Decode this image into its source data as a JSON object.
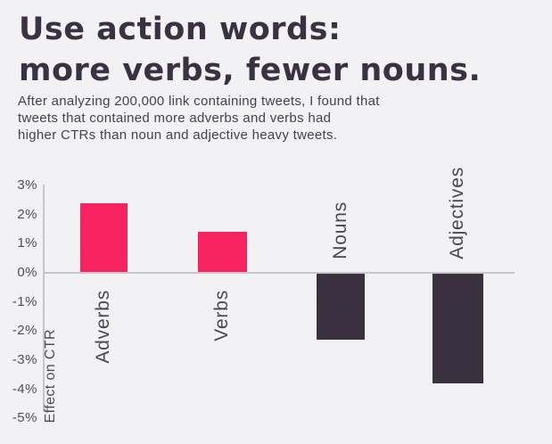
{
  "header": {
    "title_line1": "Use action words:",
    "title_line2": "more verbs, fewer nouns.",
    "subtitle_line1": "After analyzing 200,000 link containing tweets, I found that",
    "subtitle_line2": "tweets that contained more adverbs and verbs had",
    "subtitle_line3": "higher CTRs than noun and adjective heavy tweets."
  },
  "chart_data": {
    "type": "bar",
    "categories": [
      "Adverbs",
      "Verbs",
      "Nouns",
      "Adjectives"
    ],
    "values": [
      2.4,
      1.4,
      -2.3,
      -3.8
    ],
    "title": "",
    "xlabel": "",
    "ylabel": "Effect on CTR",
    "ylim": [
      -5,
      3
    ],
    "yticks": [
      3,
      2,
      1,
      0,
      -1,
      -2,
      -3,
      -4,
      -5
    ],
    "ytick_labels": [
      "3%",
      "2%",
      "1%",
      "0%",
      "-1%",
      "-2%",
      "-3%",
      "-4%",
      "-5%"
    ],
    "bar_colors": [
      "#f72361",
      "#f72361",
      "#3a3040",
      "#3a3040"
    ],
    "grid": "off",
    "legend": "none",
    "colors": {
      "positive_bar": "#f72361",
      "negative_bar": "#3a3040",
      "axis_line": "#c7c6cb",
      "background": "#f2f1f4",
      "title_text": "#3a3142",
      "body_text": "#474051"
    }
  }
}
